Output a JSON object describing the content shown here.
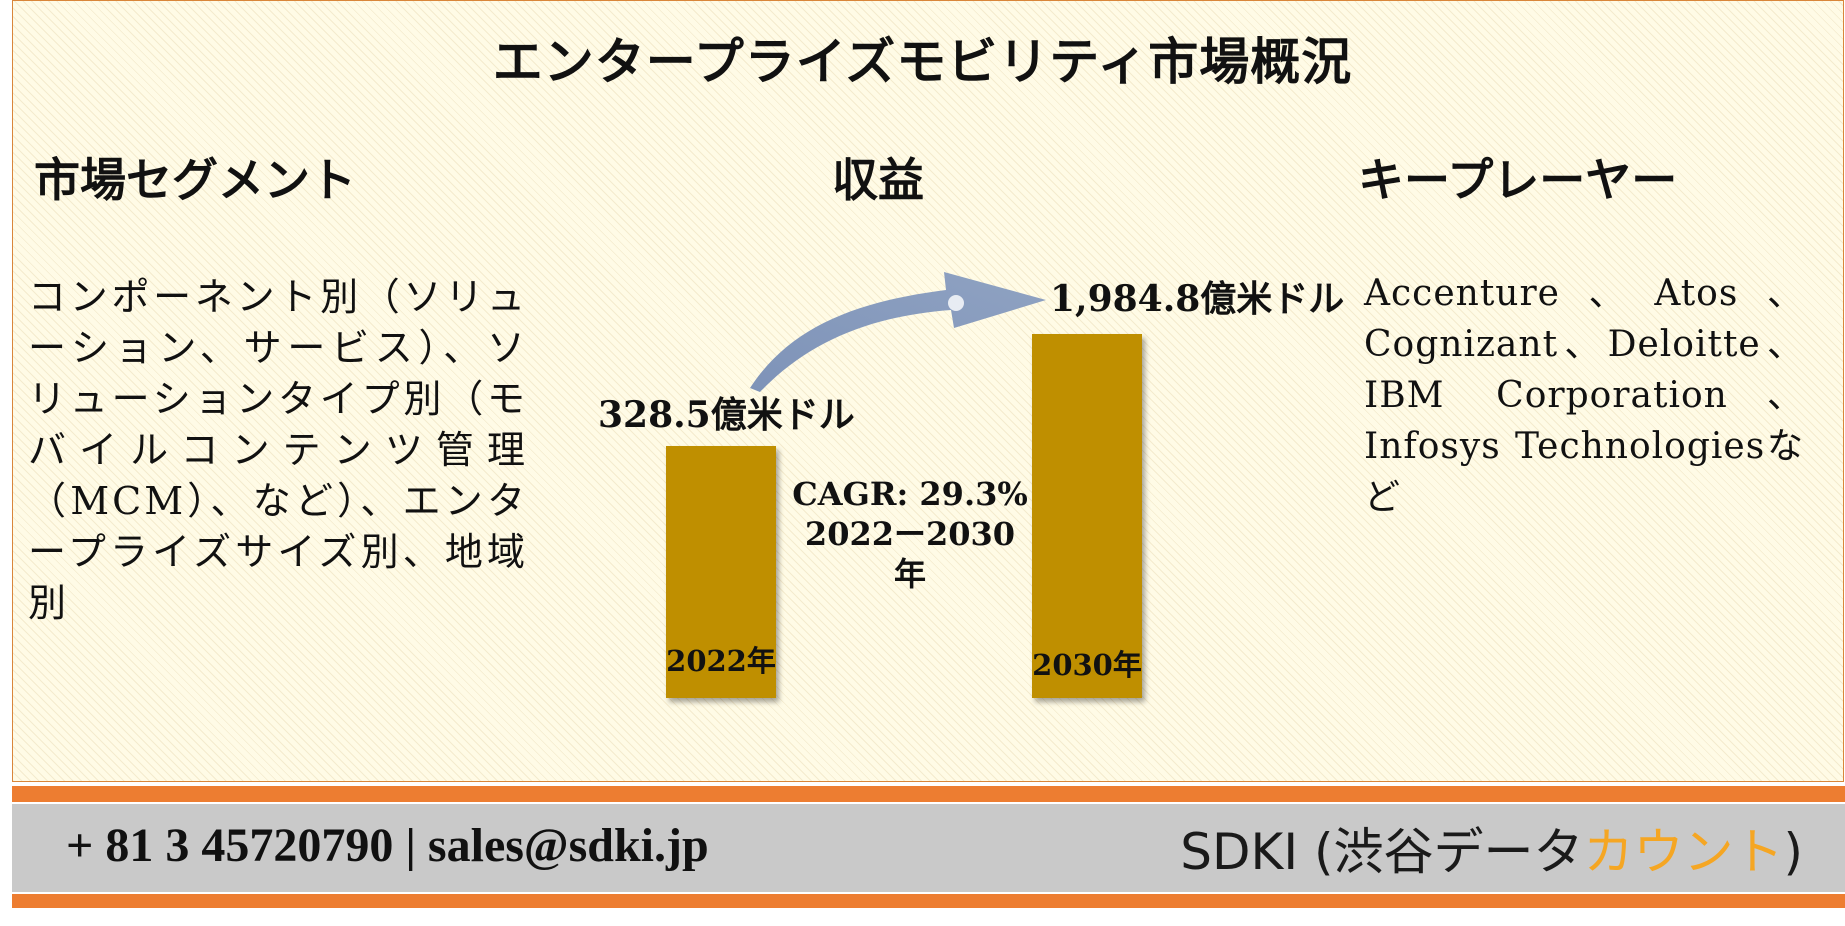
{
  "title": "エンタープライズモビリティ市場概況",
  "sections": {
    "segments_heading": "市場セグメント",
    "revenue_heading": "収益",
    "players_heading": "キープレーヤー"
  },
  "segments_text": "コンポーネント別（ソリューション、サービス）、ソリューションタイプ別（モバイルコンテンツ管理（MCM）、など）、エンタープライズサイズ別、地域別",
  "players_text": "Accenture、Atos、Cognizant、Deloitte、IBM Corporation、Infosys Technologiesなど",
  "revenue": {
    "start_label": "2022年",
    "end_label": "2030年",
    "start_value": "328.5億米ドル",
    "end_value": "1,984.8億米ドル",
    "cagr": "CAGR: 29.3%",
    "period": "2022ー2030年",
    "bar_color": "#bf8f00"
  },
  "footer": {
    "contact": "+ 81 3 45720790 | sales@sdki.jp",
    "brand_prefix": "SDKI (渋谷データ",
    "brand_accent": "カウント",
    "brand_suffix": ")",
    "accent_color": "#f5a623"
  }
}
